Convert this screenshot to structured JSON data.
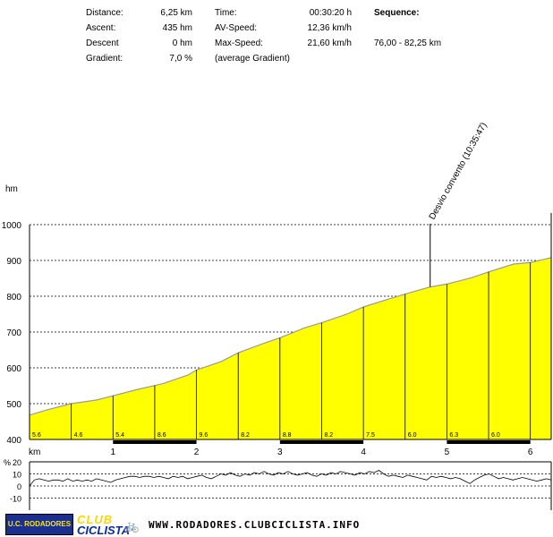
{
  "summary": {
    "distance_label": "Distance:",
    "distance_value": "6,25 km",
    "ascent_label": "Ascent:",
    "ascent_value": "435 hm",
    "descent_label": "Descent",
    "descent_value": "0 hm",
    "gradient_label": "Gradient:",
    "gradient_value": "7,0 %",
    "time_label": "Time:",
    "time_value": "00:30:20 h",
    "avspeed_label": "AV-Speed:",
    "avspeed_value": "12,36 km/h",
    "maxspeed_label": "Max-Speed:",
    "maxspeed_value": "21,60 km/h",
    "avg_gradient_note": "(average Gradient)",
    "sequence_label": "Sequence:",
    "sequence_value": "76,00 - 82,25 km"
  },
  "chart_data": [
    {
      "type": "area",
      "ylabel": "hm",
      "xlabel": "km",
      "xlim": [
        0,
        6.25
      ],
      "ylim": [
        400,
        1000
      ],
      "yticks": [
        400,
        500,
        600,
        700,
        800,
        900,
        1000
      ],
      "xticks": [
        1,
        2,
        3,
        4,
        5,
        6
      ],
      "grid": true,
      "fill_color": "#ffff00",
      "profile": [
        {
          "x": 0.0,
          "y": 468
        },
        {
          "x": 0.2,
          "y": 482
        },
        {
          "x": 0.5,
          "y": 500
        },
        {
          "x": 0.8,
          "y": 510
        },
        {
          "x": 1.0,
          "y": 522
        },
        {
          "x": 1.3,
          "y": 540
        },
        {
          "x": 1.6,
          "y": 556
        },
        {
          "x": 1.9,
          "y": 580
        },
        {
          "x": 2.0,
          "y": 594
        },
        {
          "x": 2.3,
          "y": 618
        },
        {
          "x": 2.5,
          "y": 642
        },
        {
          "x": 2.8,
          "y": 668
        },
        {
          "x": 3.0,
          "y": 684
        },
        {
          "x": 3.3,
          "y": 712
        },
        {
          "x": 3.5,
          "y": 726
        },
        {
          "x": 3.8,
          "y": 750
        },
        {
          "x": 4.0,
          "y": 770
        },
        {
          "x": 4.3,
          "y": 792
        },
        {
          "x": 4.5,
          "y": 806
        },
        {
          "x": 4.8,
          "y": 826
        },
        {
          "x": 5.0,
          "y": 834
        },
        {
          "x": 5.3,
          "y": 852
        },
        {
          "x": 5.5,
          "y": 868
        },
        {
          "x": 5.8,
          "y": 890
        },
        {
          "x": 6.0,
          "y": 894
        },
        {
          "x": 6.25,
          "y": 908
        }
      ],
      "segment_gradients": [
        {
          "x": 0.0,
          "label": "5.6"
        },
        {
          "x": 0.5,
          "label": "4.6"
        },
        {
          "x": 1.0,
          "label": "5.4"
        },
        {
          "x": 1.5,
          "label": "8.6"
        },
        {
          "x": 2.0,
          "label": "9.6"
        },
        {
          "x": 2.5,
          "label": "8.2"
        },
        {
          "x": 3.0,
          "label": "8.8"
        },
        {
          "x": 3.5,
          "label": "8.2"
        },
        {
          "x": 4.0,
          "label": "7.5"
        },
        {
          "x": 4.5,
          "label": "6.0"
        },
        {
          "x": 5.0,
          "label": "6.3"
        },
        {
          "x": 5.5,
          "label": "6.0"
        }
      ],
      "segment_lines_x": [
        0.5,
        1.0,
        1.5,
        2.0,
        2.5,
        3.0,
        3.5,
        4.0,
        4.5,
        5.0,
        5.5,
        6.0
      ],
      "annotation": {
        "x": 4.8,
        "text": "Desvio convento (10:35:47)"
      },
      "black_bars": [
        [
          1.0,
          2.0
        ],
        [
          3.0,
          4.0
        ],
        [
          5.0,
          6.0
        ]
      ]
    },
    {
      "type": "line",
      "ylabel": "%",
      "ylim": [
        -20,
        20
      ],
      "yticks": [
        20,
        10,
        0,
        -10
      ],
      "xlim": [
        0,
        6.25
      ],
      "grid": true,
      "series": [
        {
          "values": [
            0,
            5,
            6,
            5,
            4,
            5,
            5,
            4,
            6,
            4,
            5,
            4,
            5,
            4,
            6,
            5,
            4,
            3,
            5,
            6,
            7,
            8,
            8,
            7,
            8,
            8,
            7,
            8,
            7,
            6,
            8,
            7,
            8,
            6,
            7,
            8,
            9,
            7,
            6,
            8,
            10,
            9,
            11,
            9,
            8,
            10,
            9,
            11,
            10,
            12,
            10,
            9,
            11,
            10,
            12,
            10,
            9,
            10,
            11,
            9,
            8,
            10,
            9,
            11,
            10,
            12,
            11,
            10,
            9,
            11,
            10,
            12,
            11,
            13,
            10,
            8,
            9,
            8,
            7,
            9,
            8,
            7,
            6,
            5,
            8,
            7,
            8,
            7,
            6,
            7,
            6,
            4,
            2,
            5,
            7,
            9,
            10,
            8,
            6,
            7,
            6,
            5,
            6,
            7,
            6,
            5,
            4,
            5,
            6,
            5
          ]
        }
      ]
    }
  ],
  "footer": {
    "logo_text": "U.C. RODADORES",
    "club_top": "CLUB",
    "club_bottom": "CICLISTA",
    "url": "WWW.RODADORES.CLUBCICLISTA.INFO",
    "club_top_color": "#ffd500",
    "club_bottom_color": "#0a2a9a",
    "logo_bg": "#1b2f8f"
  }
}
